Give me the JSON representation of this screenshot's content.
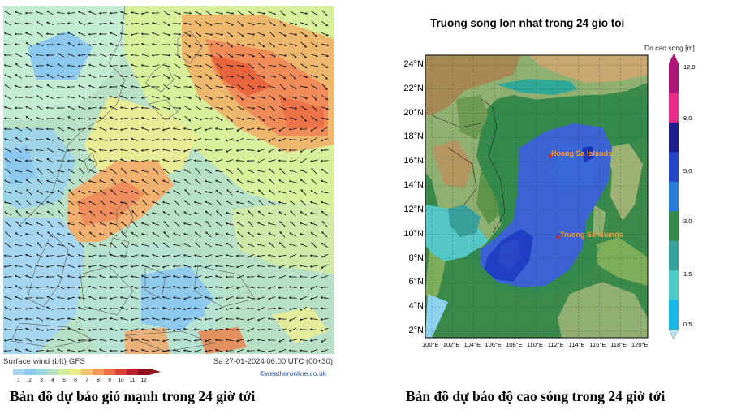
{
  "wind": {
    "footer_left": "Surface wind (bft)   GFS",
    "footer_right": "Sa 27-01-2024 06:00 UTC (00+30)",
    "credit": "©weather",
    "credit_rest": "online.co.uk",
    "scale_ticks": [
      "1",
      "2",
      "3",
      "4",
      "5",
      "6",
      "7",
      "8",
      "9",
      "10",
      "11",
      "12"
    ],
    "scale_colors": [
      "#a9d4f0",
      "#8ccaf0",
      "#9ad6e6",
      "#b6e3c8",
      "#d3ec9e",
      "#ecee8c",
      "#f6c473",
      "#f4985a",
      "#ea6c48",
      "#d84236",
      "#bd1f2a",
      "#92111f"
    ],
    "caption": "Bản đồ dự báo gió mạnh trong 24 giờ tới"
  },
  "wave": {
    "title": "Truong song lon nhat trong 24 gio toi",
    "colorbar_title": "Do cao song [m]",
    "colorbar_ticks": [
      "12.0",
      "8.0",
      "5.0",
      "3.0",
      "1.5",
      "0.5"
    ],
    "colorbar_colors": [
      "#b0167a",
      "#ea2d8a",
      "#1c1e8c",
      "#2444c9",
      "#2b7bd8",
      "#358a4a",
      "#3aa09a",
      "#4ccac7",
      "#19b7e6"
    ],
    "lat_labels": [
      "24°N",
      "22°N",
      "20°N",
      "18°N",
      "16°N",
      "14°N",
      "12°N",
      "10°N",
      "8°N",
      "6°N",
      "4°N",
      "2°N"
    ],
    "lon_labels": [
      "100°E",
      "102°E",
      "104°E",
      "106°E",
      "108°E",
      "110°E",
      "112°E",
      "114°E",
      "116°E",
      "118°E",
      "120°E"
    ],
    "hoang_sa_label": "Hoang Sa Islands",
    "truong_sa_label": "Truong Sa Islands",
    "caption": "Bản đồ dự báo độ cao sóng trong 24 giờ tới"
  }
}
